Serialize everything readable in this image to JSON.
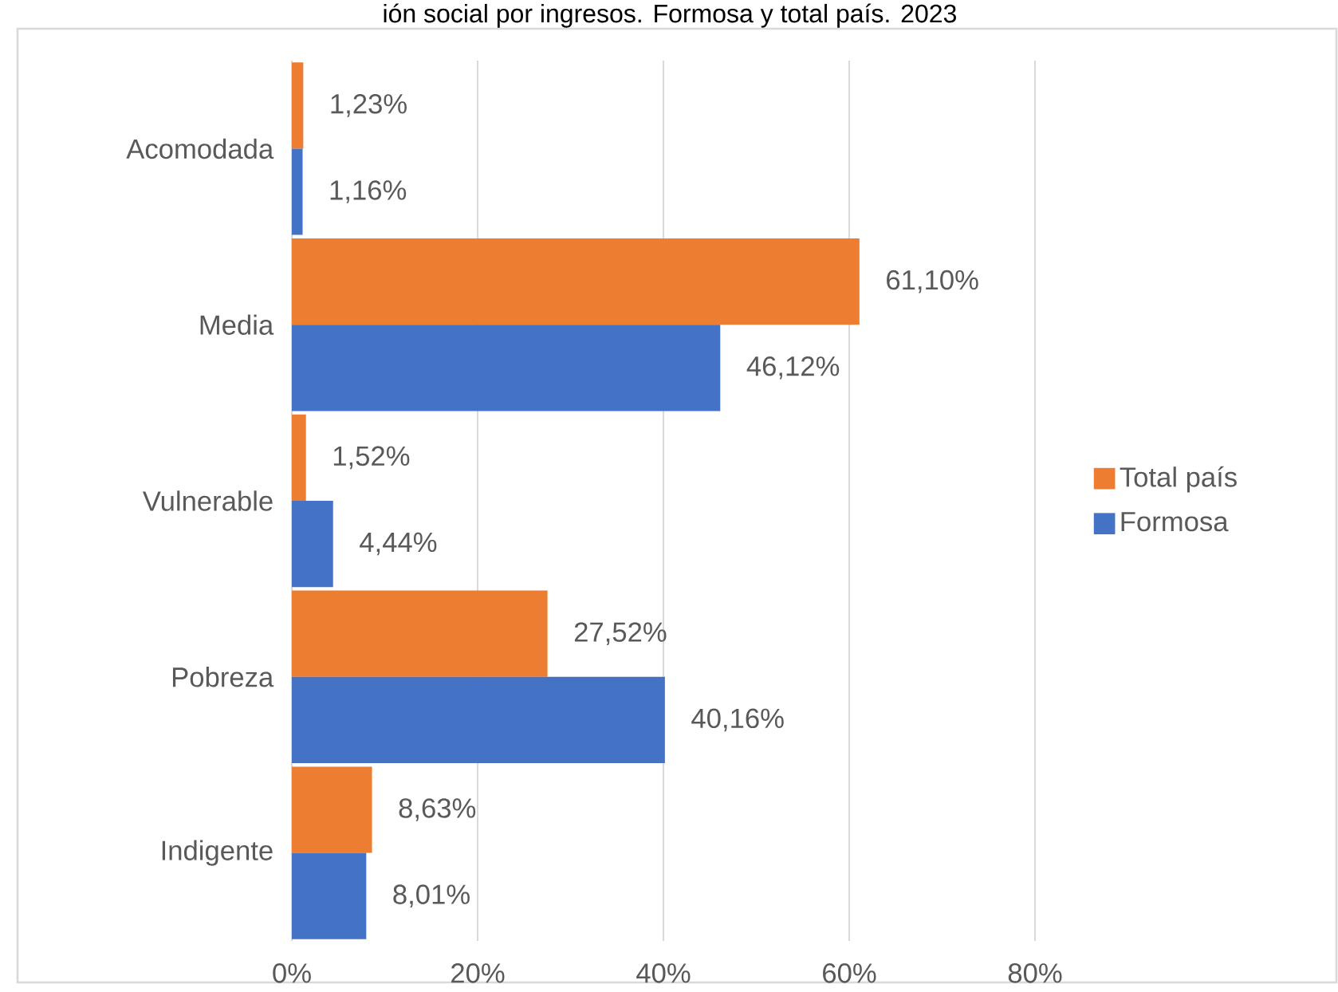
{
  "chart_data": {
    "type": "bar",
    "orientation": "horizontal",
    "title": "ión social por ingresos. Formosa y total país. 2023",
    "categories": [
      "Acomodada",
      "Media",
      "Vulnerable",
      "Pobreza",
      "Indigente"
    ],
    "series": [
      {
        "name": "Total país",
        "color": "#ed7d31",
        "values": [
          1.23,
          61.1,
          1.52,
          27.52,
          8.63
        ],
        "value_labels": [
          "1,23%",
          "61,10%",
          "1,52%",
          "27,52%",
          "8,63%"
        ]
      },
      {
        "name": "Formosa",
        "color": "#4472c4",
        "values": [
          1.16,
          46.12,
          4.44,
          40.16,
          8.01
        ],
        "value_labels": [
          "1,16%",
          "46,12%",
          "4,44%",
          "40,16%",
          "8,01%"
        ]
      }
    ],
    "xlim": [
      0,
      80
    ],
    "xticks": [
      {
        "value": 0,
        "label": "0%"
      },
      {
        "value": 20,
        "label": "20%"
      },
      {
        "value": 40,
        "label": "40%"
      },
      {
        "value": 60,
        "label": "60%"
      },
      {
        "value": 80,
        "label": "80%"
      }
    ],
    "grid": "x",
    "legend": "right"
  }
}
